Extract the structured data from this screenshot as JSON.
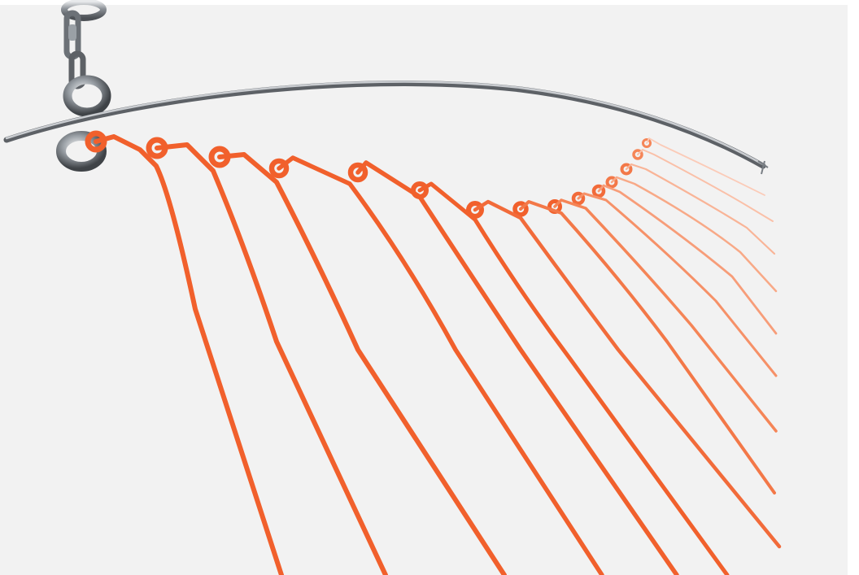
{
  "image": {
    "colors": {
      "background": "#f2f2f2",
      "frame": "#ffffff",
      "wire_orange": "#f1602c",
      "steel_dark": "#5a5e63",
      "steel_light": "#c9ccd0"
    },
    "objects": {
      "chain": "chain-links",
      "top_rod": "steel-rod",
      "eye_bolt": "steel-ring",
      "hangers": "orange-wire-hangers"
    }
  }
}
